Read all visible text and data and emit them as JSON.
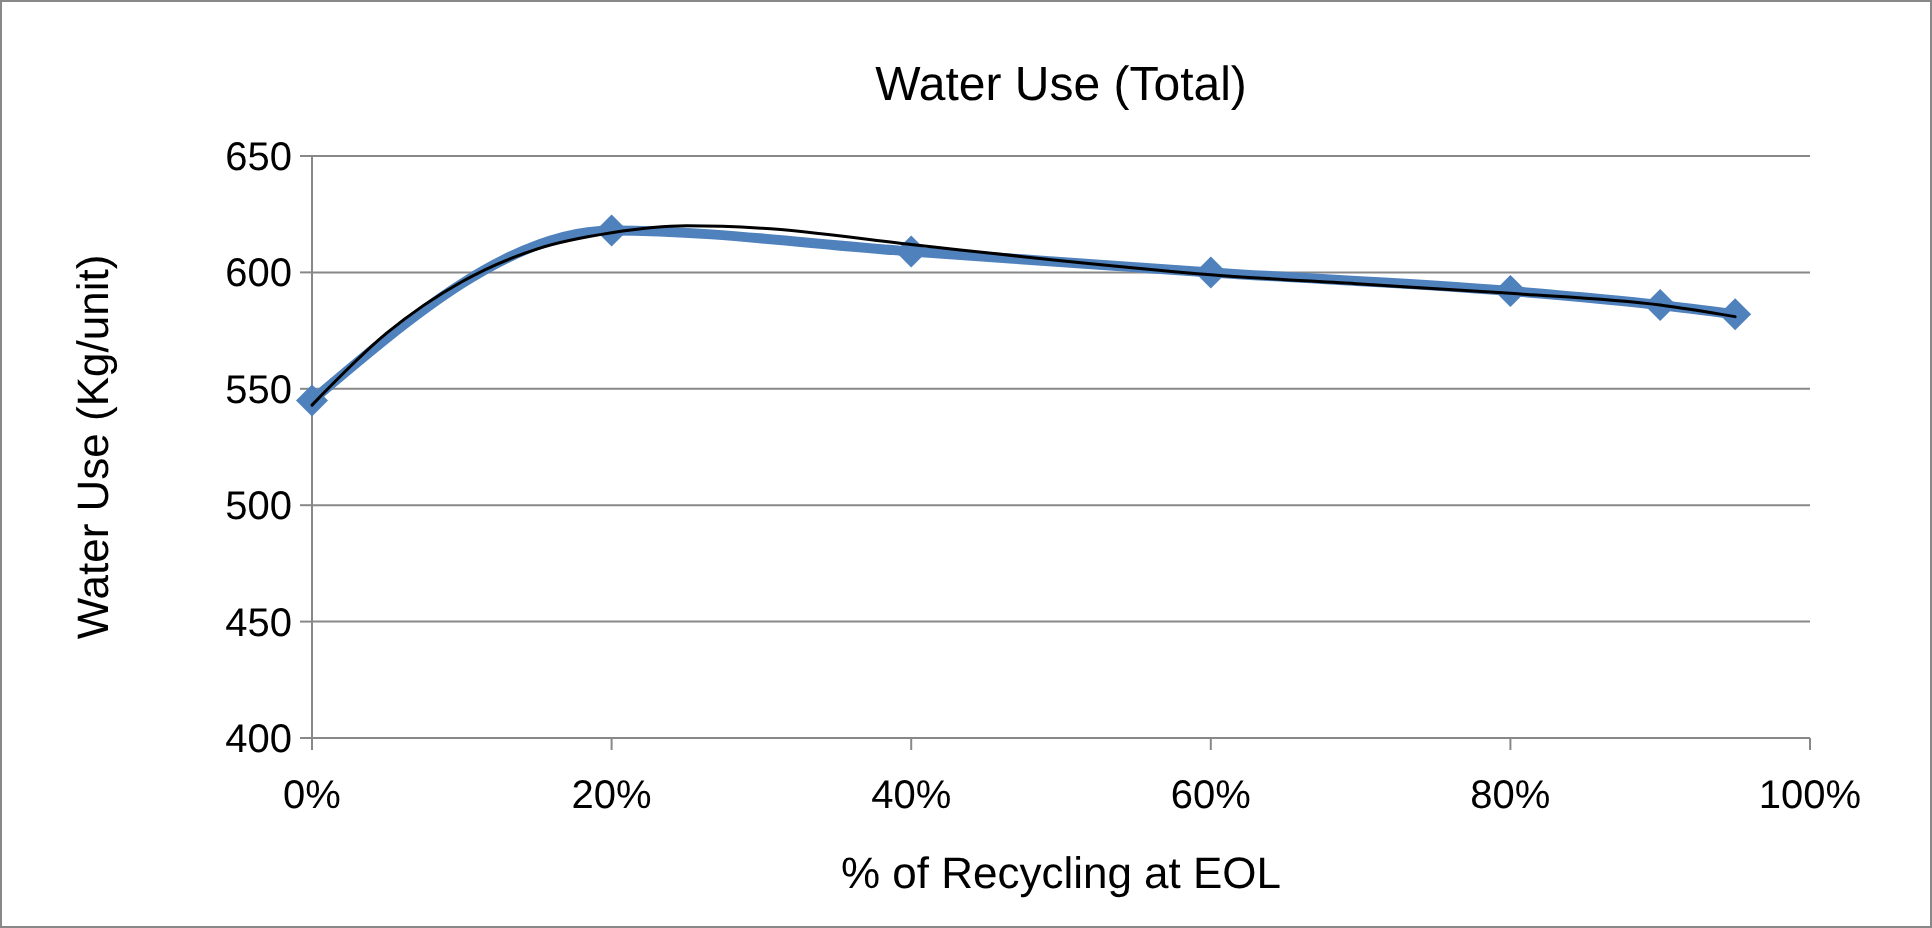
{
  "chart_data": {
    "type": "line",
    "title": "Water Use (Total)",
    "xlabel": "% of Recycling at EOL",
    "ylabel": "Water Use (Kg/unit)",
    "x": [
      0,
      20,
      40,
      60,
      80,
      90,
      95
    ],
    "series": [
      {
        "color": "#4f81bd",
        "values": [
          545,
          618,
          609,
          600,
          592,
          586,
          582
        ],
        "marker": "diamond"
      },
      {
        "color": "#000000",
        "x": [
          0,
          5,
          10,
          15,
          20,
          25,
          30,
          40,
          50,
          60,
          70,
          80,
          90,
          95
        ],
        "values": [
          543,
          574,
          596,
          610,
          617,
          620,
          619,
          612,
          605,
          599,
          595,
          591,
          586,
          581
        ],
        "marker": "none"
      }
    ],
    "xlim": [
      0,
      100
    ],
    "xticks": [
      {
        "value": 0,
        "label": "0%"
      },
      {
        "value": 20,
        "label": "20%"
      },
      {
        "value": 40,
        "label": "40%"
      },
      {
        "value": 60,
        "label": "60%"
      },
      {
        "value": 80,
        "label": "80%"
      },
      {
        "value": 100,
        "label": "100%"
      }
    ],
    "ylim": [
      400,
      650
    ],
    "yticks": [
      400,
      450,
      500,
      550,
      600,
      650
    ],
    "grid": "y",
    "line_style": "solid"
  }
}
